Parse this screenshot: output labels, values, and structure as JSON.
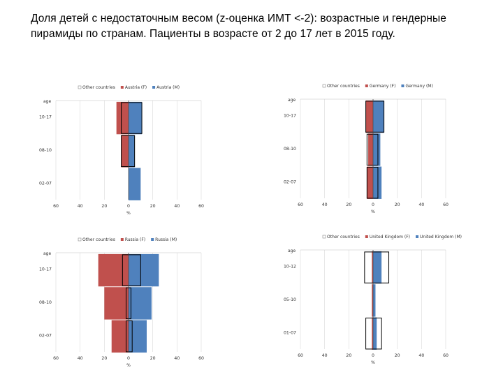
{
  "title": "Доля детей с недостаточным весом (z-оценка ИМТ <-2): возрастные и гендерные пирамиды по странам. Пациенты в возрасте от 2 до 17 лет в 2015 году.",
  "colors": {
    "female": "#c0504d",
    "male": "#4f81bd",
    "other_outline": "#000000"
  },
  "chart_data": [
    {
      "type": "bar",
      "orientation": "horizontal-pyramid",
      "legend": [
        "Other countries",
        "Austria (F)",
        "Austria (M)"
      ],
      "legend_position": "top",
      "ylabel": "age",
      "xlabel": "%",
      "categories": [
        "10-17",
        "08-10",
        "02-07"
      ],
      "x_ticks": [
        "60",
        "40",
        "20",
        "0",
        "20",
        "40",
        "60"
      ],
      "xlim": [
        -60,
        60
      ],
      "grid": "vertical",
      "series": [
        {
          "name": "Austria (F)",
          "values": [
            10,
            6,
            0
          ]
        },
        {
          "name": "Austria (M)",
          "values": [
            11,
            5,
            10
          ]
        },
        {
          "name": "Other countries",
          "values": [
            [
              6,
              11
            ],
            [
              6,
              5
            ],
            [
              0,
              0
            ]
          ]
        }
      ]
    },
    {
      "type": "bar",
      "orientation": "horizontal-pyramid",
      "legend": [
        "Other countries",
        "Germany (F)",
        "Germany (M)"
      ],
      "legend_position": "top",
      "ylabel": "age",
      "xlabel": "%",
      "categories": [
        "10-17",
        "08-10",
        "02-07"
      ],
      "x_ticks": [
        "60",
        "40",
        "20",
        "0",
        "20",
        "40",
        "60"
      ],
      "xlim": [
        -60,
        60
      ],
      "grid": "vertical",
      "series": [
        {
          "name": "Germany (F)",
          "values": [
            6,
            4,
            5
          ]
        },
        {
          "name": "Germany (M)",
          "values": [
            9,
            6,
            7
          ]
        },
        {
          "name": "Other countries",
          "values": [
            [
              6,
              9
            ],
            [
              5,
              4
            ],
            [
              5,
              4
            ]
          ]
        }
      ]
    },
    {
      "type": "bar",
      "orientation": "horizontal-pyramid",
      "legend": [
        "Other countries",
        "Russia (F)",
        "Russia (M)"
      ],
      "legend_position": "top",
      "ylabel": "age",
      "xlabel": "%",
      "categories": [
        "10-17",
        "08-10",
        "02-07"
      ],
      "x_ticks": [
        "60",
        "40",
        "20",
        "0",
        "20",
        "40",
        "60"
      ],
      "xlim": [
        -60,
        60
      ],
      "grid": "vertical",
      "series": [
        {
          "name": "Russia (F)",
          "values": [
            25,
            20,
            14
          ]
        },
        {
          "name": "Russia (M)",
          "values": [
            25,
            19,
            15
          ]
        },
        {
          "name": "Other countries",
          "values": [
            [
              5,
              10
            ],
            [
              2,
              2
            ],
            [
              2,
              3
            ]
          ]
        }
      ]
    },
    {
      "type": "bar",
      "orientation": "horizontal-pyramid",
      "legend": [
        "Other countries",
        "United Kingdom (F)",
        "United Kingdom (M)"
      ],
      "legend_position": "top",
      "ylabel": "age",
      "xlabel": "%",
      "categories": [
        "10-12",
        "05-10",
        "01-07"
      ],
      "x_ticks": [
        "60",
        "40",
        "20",
        "0",
        "20",
        "40",
        "60"
      ],
      "xlim": [
        -60,
        60
      ],
      "grid": "vertical",
      "series": [
        {
          "name": "United Kingdom (F)",
          "values": [
            1,
            1,
            1
          ]
        },
        {
          "name": "United Kingdom (M)",
          "values": [
            7,
            2,
            3
          ]
        },
        {
          "name": "Other countries",
          "values": [
            [
              7,
              13
            ],
            [
              0,
              0
            ],
            [
              6,
              7
            ]
          ]
        }
      ]
    }
  ]
}
